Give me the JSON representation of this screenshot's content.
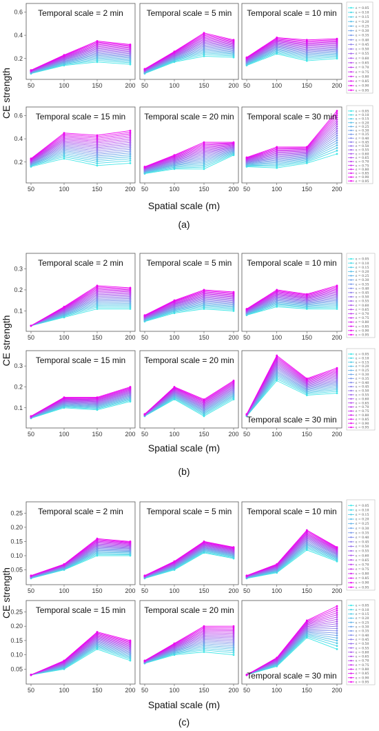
{
  "colors": {
    "start": "#3fe6e6",
    "end": "#f000f0"
  },
  "chart_data": [
    {
      "type": "line",
      "label": "(a)",
      "xlabel": "Spatial scale (m)",
      "ylabel": "CE strength",
      "x": [
        50,
        100,
        150,
        200
      ],
      "xticks": [
        "50",
        "100",
        "150",
        "200"
      ],
      "legend": [
        "ε = 0.05",
        "ε = 0.10",
        "ε = 0.15",
        "ε = 0.20",
        "ε = 0.25",
        "ε = 0.30",
        "ε = 0.35",
        "ε = 0.40",
        "ε = 0.45",
        "ε = 0.50",
        "ε = 0.55",
        "ε = 0.60",
        "ε = 0.65",
        "ε = 0.70",
        "ε = 0.75",
        "ε = 0.80",
        "ε = 0.85",
        "ε = 0.90",
        "ε = 0.95"
      ],
      "ylim": [
        0.05,
        0.65
      ],
      "yticks": [
        0.2,
        0.4,
        0.6
      ],
      "ytick_labels": [
        "0.2",
        "0.4",
        "0.6"
      ],
      "panels": [
        {
          "title": "Temporal scale = 2 min",
          "low": [
            0.07,
            0.14,
            0.17,
            0.15
          ],
          "high": [
            0.1,
            0.23,
            0.35,
            0.32
          ]
        },
        {
          "title": "Temporal scale = 5 min",
          "low": [
            0.07,
            0.17,
            0.22,
            0.21
          ],
          "high": [
            0.11,
            0.26,
            0.42,
            0.36
          ]
        },
        {
          "title": "Temporal scale = 10 min",
          "low": [
            0.14,
            0.24,
            0.18,
            0.2
          ],
          "high": [
            0.21,
            0.38,
            0.36,
            0.37
          ]
        },
        {
          "title": "Temporal scale = 15 min",
          "low": [
            0.16,
            0.23,
            0.17,
            0.19
          ],
          "high": [
            0.23,
            0.45,
            0.43,
            0.47
          ]
        },
        {
          "title": "Temporal scale = 20 min",
          "low": [
            0.1,
            0.14,
            0.14,
            0.26
          ],
          "high": [
            0.16,
            0.26,
            0.37,
            0.37
          ]
        },
        {
          "title": "Temporal scale = 30 min",
          "low": [
            0.16,
            0.15,
            0.19,
            0.27
          ],
          "high": [
            0.24,
            0.33,
            0.33,
            0.64
          ]
        }
      ]
    },
    {
      "type": "line",
      "label": "(b)",
      "xlabel": "Spatial scale (m)",
      "ylabel": "CE strength",
      "x": [
        50,
        100,
        150,
        200
      ],
      "xticks": [
        "50",
        "100",
        "150",
        "200"
      ],
      "legend": [
        "ε = 0.05",
        "ε = 0.10",
        "ε = 0.15",
        "ε = 0.20",
        "ε = 0.25",
        "ε = 0.30",
        "ε = 0.35",
        "ε = 0.40",
        "ε = 0.45",
        "ε = 0.50",
        "ε = 0.55",
        "ε = 0.60",
        "ε = 0.65",
        "ε = 0.70",
        "ε = 0.75",
        "ε = 0.80",
        "ε = 0.85",
        "ε = 0.90",
        "ε = 0.95"
      ],
      "ylim": [
        0.02,
        0.36
      ],
      "yticks": [
        0.1,
        0.2,
        0.3
      ],
      "ytick_labels": [
        "0.1",
        "0.2",
        "0.3"
      ],
      "panels": [
        {
          "title": "Temporal scale = 2 min",
          "low": [
            0.03,
            0.07,
            0.11,
            0.11
          ],
          "high": [
            0.03,
            0.12,
            0.22,
            0.21
          ]
        },
        {
          "title": "Temporal scale = 5 min",
          "low": [
            0.05,
            0.09,
            0.11,
            0.1
          ],
          "high": [
            0.08,
            0.15,
            0.2,
            0.19
          ]
        },
        {
          "title": "Temporal scale = 10 min",
          "low": [
            0.08,
            0.12,
            0.11,
            0.11
          ],
          "high": [
            0.11,
            0.2,
            0.18,
            0.22
          ]
        },
        {
          "title": "Temporal scale = 15 min",
          "low": [
            0.05,
            0.1,
            0.09,
            0.13
          ],
          "high": [
            0.06,
            0.15,
            0.15,
            0.2
          ]
        },
        {
          "title": "Temporal scale = 20 min",
          "low": [
            0.06,
            0.14,
            0.06,
            0.14
          ],
          "high": [
            0.07,
            0.2,
            0.14,
            0.23
          ]
        },
        {
          "title": "Temporal scale = 30 min",
          "low": [
            0.06,
            0.23,
            0.16,
            0.17
          ],
          "high": [
            0.07,
            0.35,
            0.24,
            0.29
          ]
        }
      ]
    },
    {
      "type": "line",
      "label": "(c)",
      "xlabel": "Spatial scale (m)",
      "ylabel": "CE strength",
      "x": [
        50,
        100,
        150,
        200
      ],
      "xticks": [
        "50",
        "100",
        "150",
        "200"
      ],
      "legend": [
        "ε = 0.05",
        "ε = 0.10",
        "ε = 0.15",
        "ε = 0.20",
        "ε = 0.25",
        "ε = 0.30",
        "ε = 0.35",
        "ε = 0.40",
        "ε = 0.45",
        "ε = 0.50",
        "ε = 0.55",
        "ε = 0.60",
        "ε = 0.65",
        "ε = 0.70",
        "ε = 0.75",
        "ε = 0.80",
        "ε = 0.85",
        "ε = 0.90",
        "ε = 0.95"
      ],
      "ylim": [
        0.01,
        0.28
      ],
      "yticks": [
        0.05,
        0.1,
        0.15,
        0.2,
        0.25
      ],
      "ytick_labels": [
        "0.05",
        "0.10",
        "0.15",
        "0.20",
        "0.25"
      ],
      "panels": [
        {
          "title": "Temporal scale = 2 min",
          "low": [
            0.02,
            0.05,
            0.1,
            0.1
          ],
          "high": [
            0.03,
            0.07,
            0.16,
            0.15
          ]
        },
        {
          "title": "Temporal scale = 5 min",
          "low": [
            0.02,
            0.05,
            0.11,
            0.09
          ],
          "high": [
            0.03,
            0.08,
            0.15,
            0.13
          ]
        },
        {
          "title": "Temporal scale = 10 min",
          "low": [
            0.02,
            0.04,
            0.12,
            0.08
          ],
          "high": [
            0.03,
            0.07,
            0.19,
            0.13
          ]
        },
        {
          "title": "Temporal scale = 15 min",
          "low": [
            0.03,
            0.05,
            0.12,
            0.08
          ],
          "high": [
            0.03,
            0.08,
            0.18,
            0.15
          ]
        },
        {
          "title": "Temporal scale = 20 min",
          "low": [
            0.07,
            0.1,
            0.11,
            0.1
          ],
          "high": [
            0.08,
            0.14,
            0.2,
            0.2
          ]
        },
        {
          "title": "Temporal scale = 30 min",
          "low": [
            0.03,
            0.06,
            0.16,
            0.12
          ],
          "high": [
            0.03,
            0.09,
            0.22,
            0.27
          ]
        }
      ]
    }
  ]
}
